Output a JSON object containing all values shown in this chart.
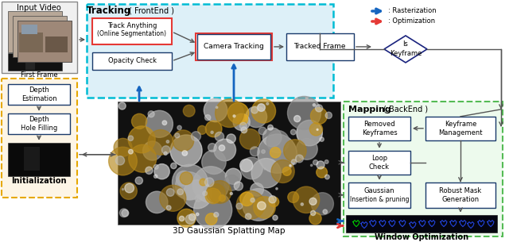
{
  "bg_color": "#ffffff",
  "tracking_bg": "#ddf0f8",
  "tracking_border": "#00bcd4",
  "init_bg": "#fdf5e6",
  "init_border": "#e6a800",
  "mapping_bg": "#edfaed",
  "mapping_border": "#55bb55",
  "box_border": "#1a3a6b",
  "box_bg": "#ffffff",
  "arrow_blue": "#1565c0",
  "arrow_red": "#e53935",
  "arrow_gray": "#555555",
  "diamond_border": "#1a237e",
  "track_anything_border": "#e53935",
  "window_bg": "#05050f",
  "input_video_label": "Input Video",
  "first_frame_label": "First Frame",
  "init_label": "Initialization",
  "tracking_label": "Tracking",
  "tracking_sub": "( FrontEnd )",
  "track_anything_line1": "Track Anything",
  "track_anything_line2": "(Online Segmentation)",
  "opacity_check": "Opacity Check",
  "camera_tracking": "Camera Tracking",
  "tracked_frame": "Tracked Frame",
  "is_keyframe_line1": "Is",
  "is_keyframe_line2": "Keyframe",
  "depth_estimation": "Depth\nEstimation",
  "depth_hole": "Depth\nHole Filling",
  "legend_raster": ": Rasterization",
  "legend_optim": ": Optimization",
  "mapping_label": "Mapping",
  "mapping_sub": "( BackEnd )",
  "removed_kf_line1": "Removed",
  "removed_kf_line2": "Keyframes",
  "kf_mgmt_line1": "Keyframe",
  "kf_mgmt_line2": "Management",
  "loop_check": "Loop\nCheck",
  "gaussian_line1": "Gaussian",
  "gaussian_line2": "Insertion & pruning",
  "robust_line1": "Robust Mask",
  "robust_line2": "Generation",
  "window_opt": "Window Optimization",
  "gs_map_label": "3D Gaussian Splatting Map"
}
